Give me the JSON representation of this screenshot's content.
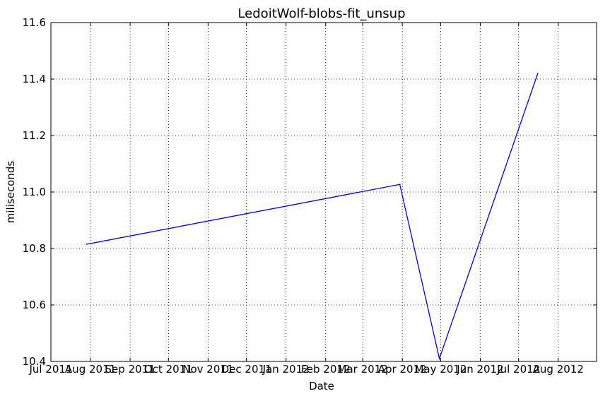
{
  "chart_data": {
    "type": "line",
    "title": "LedoitWolf-blobs-fit_unsup",
    "xlabel": "Date",
    "ylabel": "miliseconds",
    "xlim": [
      "2011-07-01",
      "2012-08-31"
    ],
    "ylim": [
      10.4,
      11.6
    ],
    "x_tick_labels": [
      "Jul 2011",
      "Aug 2011",
      "Sep 2011",
      "Oct 2011",
      "Nov 2011",
      "Dec 2011",
      "Jan 2012",
      "Feb 2012",
      "Mar 2012",
      "Apr 2012",
      "May 2012",
      "Jun 2012",
      "Jul 2012",
      "Aug 2012"
    ],
    "y_tick_labels": [
      "10.4",
      "10.6",
      "10.8",
      "11.0",
      "11.2",
      "11.4",
      "11.6"
    ],
    "grid": true,
    "series": [
      {
        "color": "#0000ff",
        "x": [
          "2011-07-29",
          "2012-03-30",
          "2012-04-30",
          "2012-07-16"
        ],
        "y": [
          10.815,
          11.027,
          10.41,
          11.42
        ]
      }
    ]
  }
}
